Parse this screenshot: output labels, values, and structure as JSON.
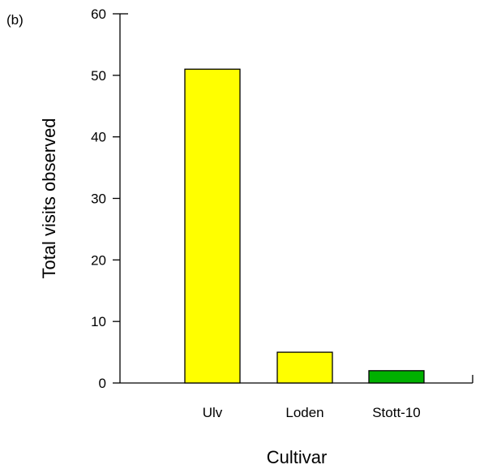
{
  "panel_label": "(b)",
  "chart_data": {
    "type": "bar",
    "categories": [
      "Ulv",
      "Loden",
      "Stott-10"
    ],
    "values": [
      51,
      5,
      2
    ],
    "bar_colors": [
      "#ffff00",
      "#ffff00",
      "#00b000"
    ],
    "xlabel": "Cultivar",
    "ylabel": "Total visits observed",
    "ylim": [
      0,
      60
    ],
    "yticks": [
      0,
      10,
      20,
      30,
      40,
      50,
      60
    ],
    "grid": false
  }
}
